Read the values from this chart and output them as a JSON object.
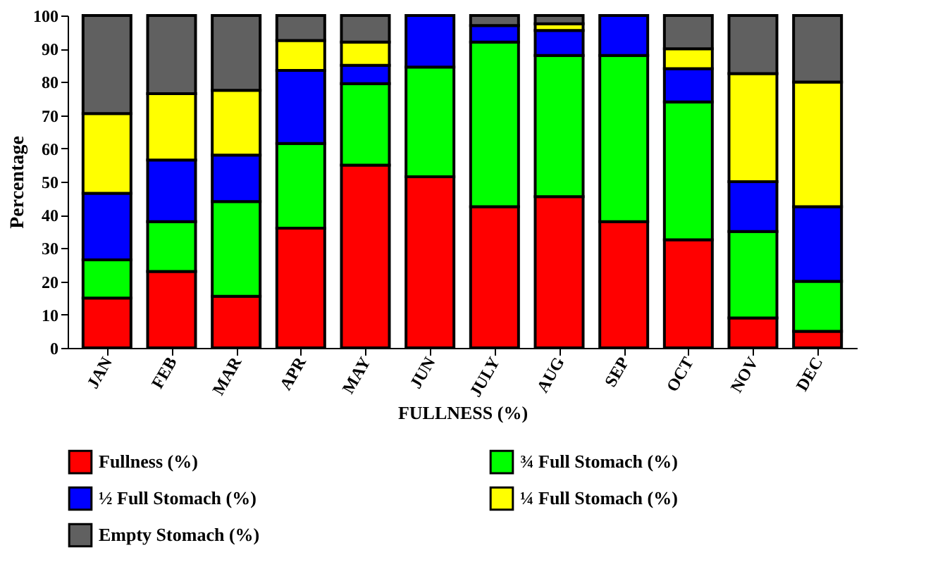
{
  "chart_data": {
    "type": "bar",
    "stacked": true,
    "xlabel": "FULLNESS (%)",
    "ylabel": "Percentage",
    "categories": [
      "JAN",
      "FEB",
      "MAR",
      "APR",
      "MAY",
      "JUN",
      "JULY",
      "AUG",
      "SEP",
      "OCT",
      "NOV",
      "DEC"
    ],
    "series": [
      {
        "name": "Fullness (%)",
        "color": "#ff0000",
        "values": [
          15,
          23,
          15.5,
          36,
          55,
          51.5,
          42.5,
          45.5,
          38,
          32.5,
          9,
          5
        ]
      },
      {
        "name": "¾ Full Stomach (%)",
        "color": "#00ff00",
        "values": [
          11.5,
          15,
          28.5,
          25.5,
          24.5,
          33,
          49.5,
          42.5,
          50,
          41.5,
          26,
          15
        ]
      },
      {
        "name": "½ Full Stomach (%)",
        "color": "#0000ff",
        "values": [
          20,
          18.5,
          14,
          22,
          5.5,
          15.5,
          5,
          7.5,
          12,
          10,
          15,
          22.5
        ]
      },
      {
        "name": "¼ Full Stomach (%)",
        "color": "#ffff00",
        "values": [
          24,
          20,
          19.5,
          9,
          7,
          0,
          0,
          2,
          0,
          6,
          32.5,
          37.5
        ]
      },
      {
        "name": "Empty Stomach (%)",
        "color": "#606060",
        "values": [
          29.5,
          23.5,
          22.5,
          7.5,
          8,
          0,
          3,
          2.5,
          0,
          10,
          17.5,
          20
        ]
      }
    ],
    "ylim": [
      0,
      100
    ],
    "yticks": [
      0,
      10,
      20,
      30,
      40,
      50,
      60,
      70,
      80,
      90,
      100
    ],
    "grid": false,
    "legend": "bottom"
  }
}
